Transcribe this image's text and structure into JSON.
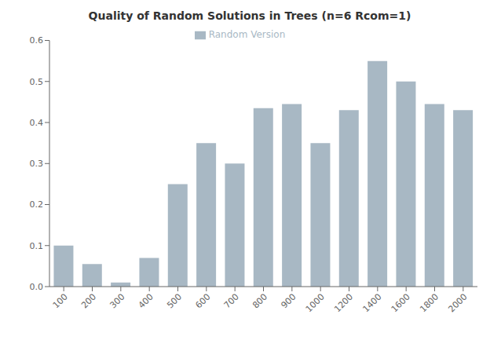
{
  "chart_data": {
    "type": "bar",
    "title": "Quality of Random Solutions in Trees (n=6 Rcom=1)",
    "categories": [
      100,
      200,
      300,
      400,
      500,
      600,
      700,
      800,
      900,
      1000,
      1200,
      1400,
      1600,
      1800,
      2000
    ],
    "series": [
      {
        "name": "Random Version",
        "color": "#a8b8c4",
        "values": [
          0.1,
          0.055,
          0.01,
          0.07,
          0.25,
          0.35,
          0.3,
          0.435,
          0.445,
          0.35,
          0.43,
          0.55,
          0.5,
          0.445,
          0.43
        ]
      }
    ],
    "ylim": [
      0,
      0.6
    ],
    "yticks": [
      {
        "value": 0,
        "label": "0.0"
      },
      0.1,
      0.2,
      0.3,
      0.4,
      0.5,
      0.6
    ],
    "grid": false,
    "legend": "top"
  }
}
